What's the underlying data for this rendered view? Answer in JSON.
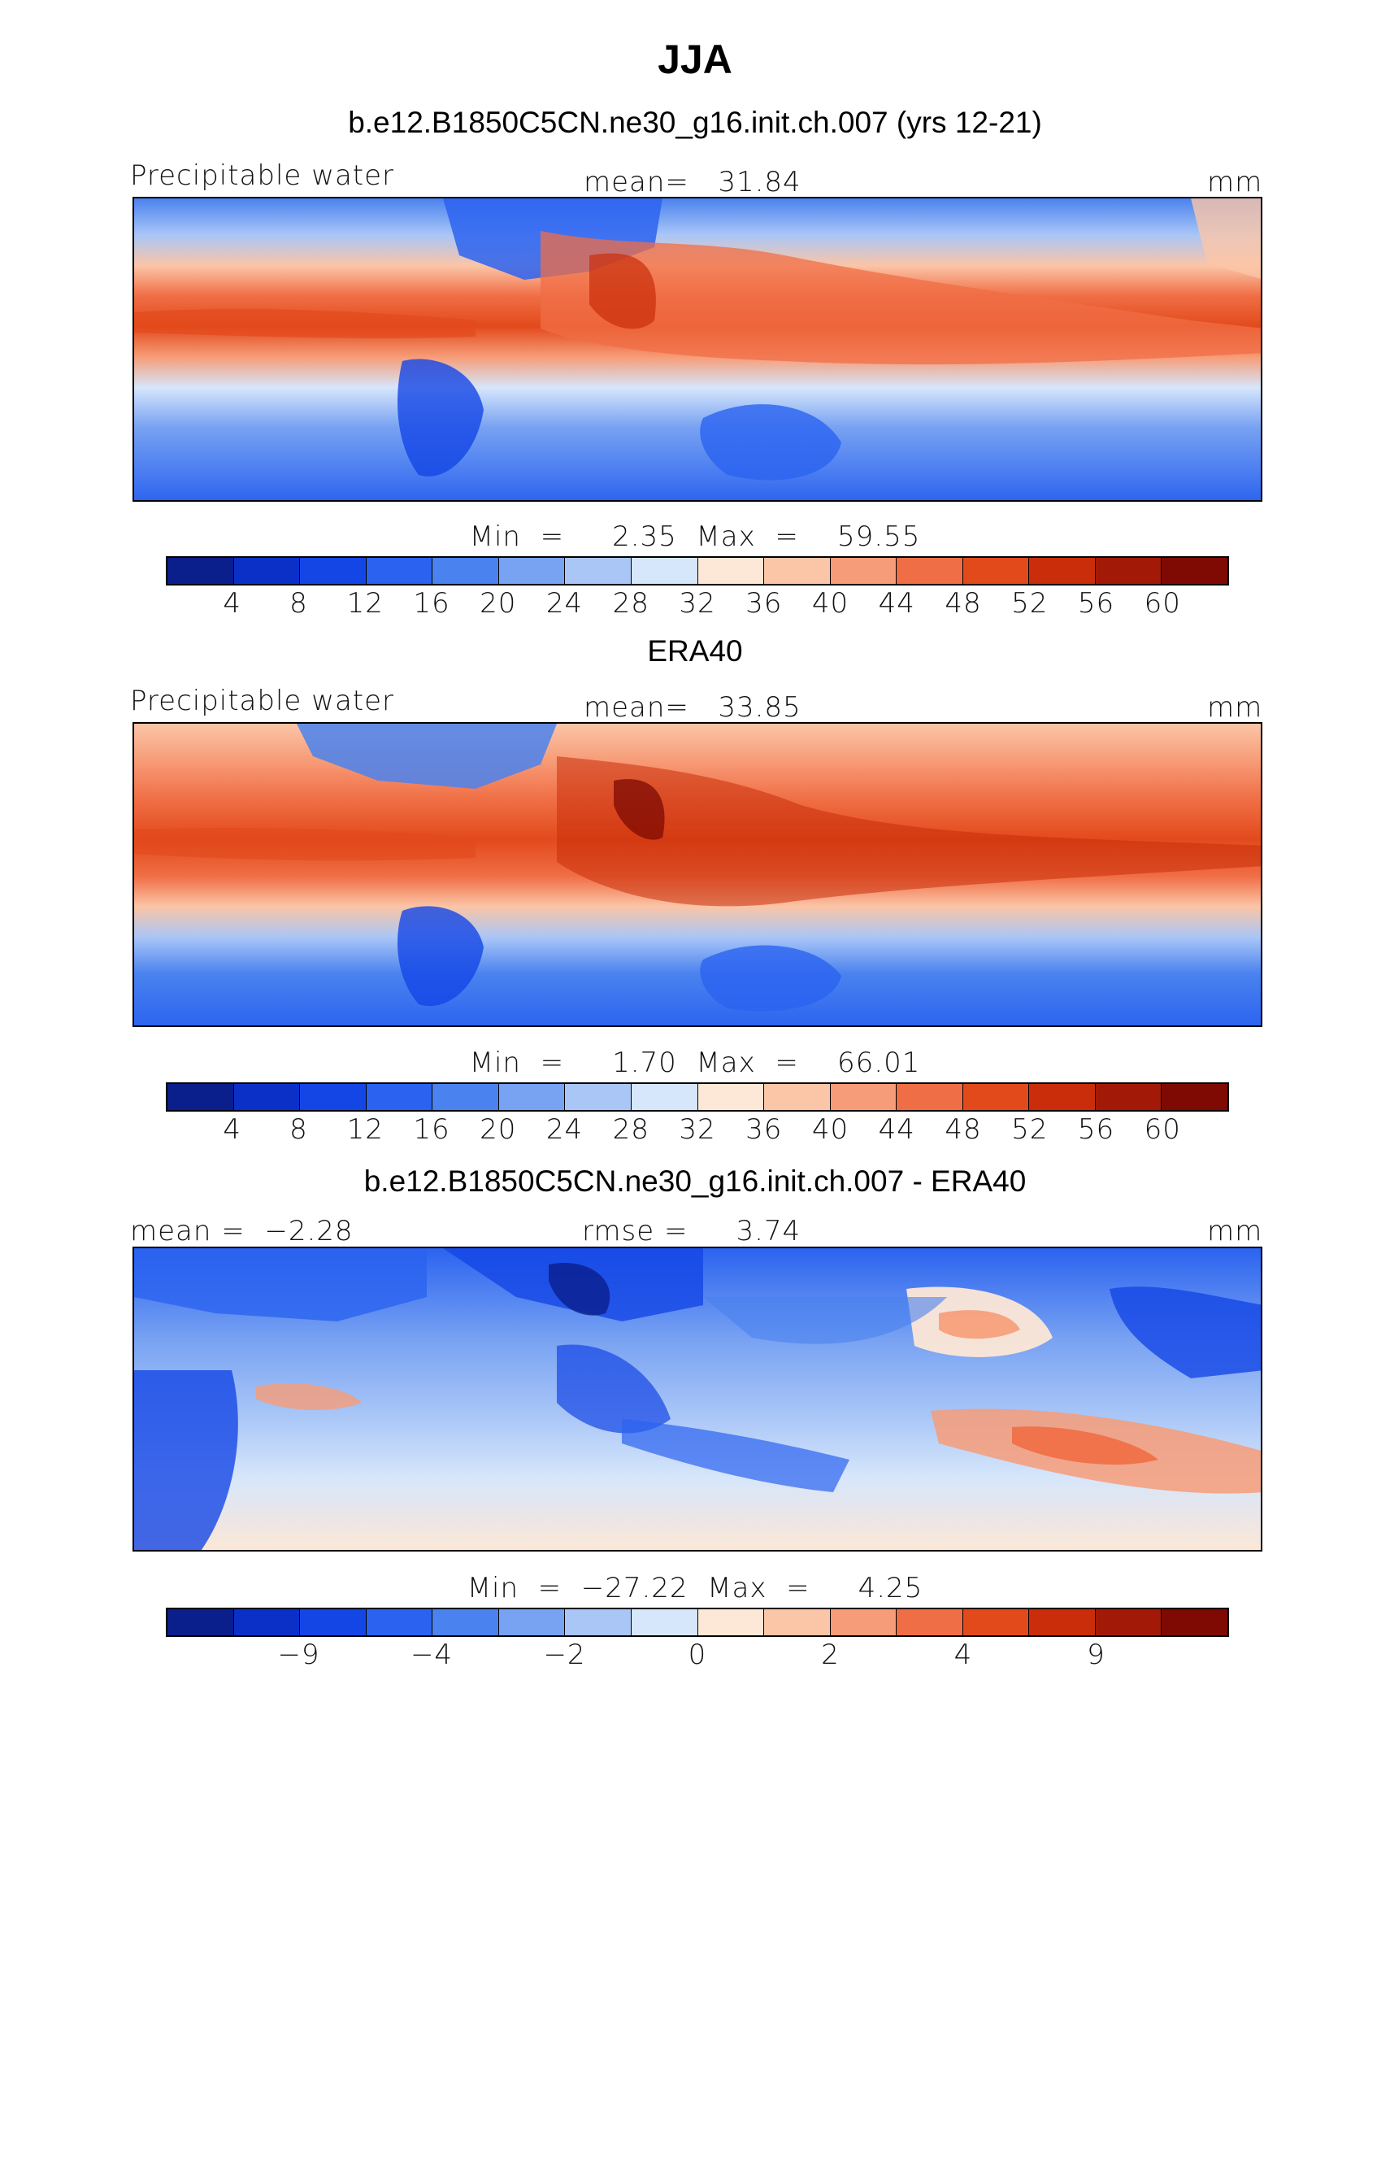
{
  "title": "JJA",
  "palette": [
    "#0a1e8c",
    "#0b30c8",
    "#1446e6",
    "#2b63f0",
    "#4a82ef",
    "#78a2f2",
    "#a9c6f7",
    "#d6e6fb",
    "#fde7d6",
    "#fbc5a7",
    "#f79c78",
    "#f06e45",
    "#e24a1c",
    "#c92d0a",
    "#a31908",
    "#7e0a03"
  ],
  "panels": [
    {
      "title": "b.e12.B1850C5CN.ne30_g16.init.ch.007 (yrs 12-21)",
      "left_label": "Precipitable water",
      "center_label": "mean=   31.84",
      "units": "mm",
      "min_max": "Min  =     2.35  Max  =    59.55",
      "tick_labels": [
        "4",
        "8",
        "12",
        "16",
        "20",
        "24",
        "28",
        "32",
        "36",
        "40",
        "44",
        "48",
        "52",
        "56",
        "60"
      ]
    },
    {
      "title": "ERA40",
      "left_label": "Precipitable water",
      "center_label": "mean=   33.85",
      "units": "mm",
      "min_max": "Min  =     1.70  Max  =    66.01",
      "tick_labels": [
        "4",
        "8",
        "12",
        "16",
        "20",
        "24",
        "28",
        "32",
        "36",
        "40",
        "44",
        "48",
        "52",
        "56",
        "60"
      ]
    },
    {
      "title": "b.e12.B1850C5CN.ne30_g16.init.ch.007 - ERA40",
      "left_label": "mean =  −2.28",
      "center_label": "rmse =     3.74",
      "units": "mm",
      "min_max": "Min  =  −27.22  Max  =     4.25",
      "tick_labels": [
        "",
        "−9",
        "",
        "−4",
        "",
        "−2",
        "",
        "0",
        "",
        "2",
        "",
        "4",
        "",
        "9",
        ""
      ]
    }
  ]
}
